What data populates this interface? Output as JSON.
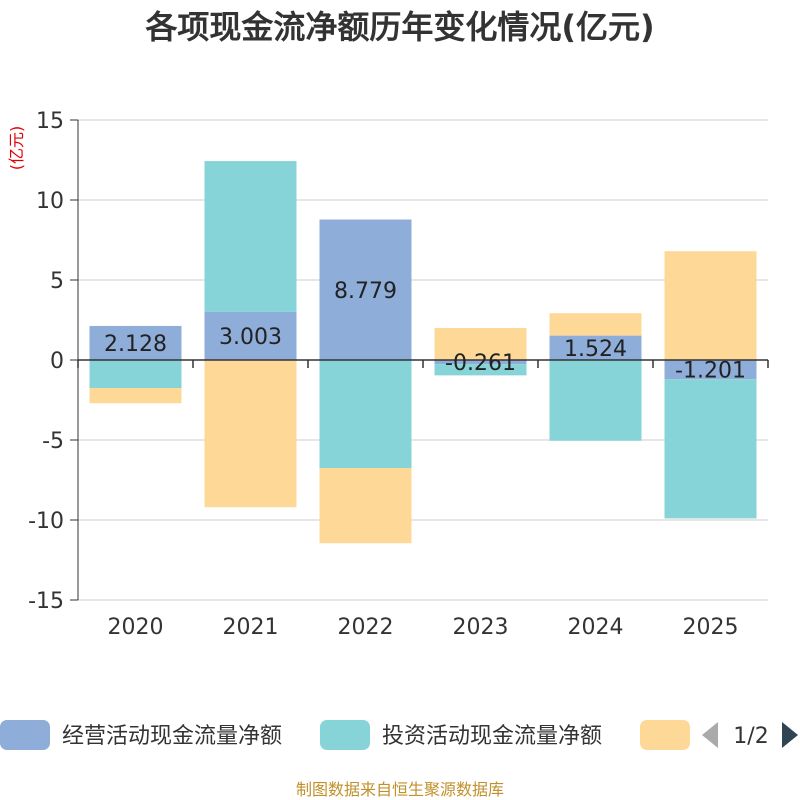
{
  "chart_data": {
    "type": "bar",
    "stacked": true,
    "title": "各项现金流净额历年变化情况(亿元)",
    "ylabel": "(亿元)",
    "ylim": [
      -15,
      15
    ],
    "yticks": [
      15,
      10,
      5,
      0,
      -5,
      -10,
      -15
    ],
    "categories": [
      "2020",
      "2021",
      "2022",
      "2023",
      "2024",
      "2025"
    ],
    "series": [
      {
        "name": "经营活动现金流量净额",
        "color": "#8eadd9",
        "values": [
          2.128,
          3.003,
          8.779,
          -0.261,
          1.524,
          -1.201
        ],
        "labels": [
          "2.128",
          "3.003",
          "8.779",
          "-0.261",
          "1.524",
          "-1.201"
        ]
      },
      {
        "name": "投资活动现金流量净额",
        "color": "#86d4d8",
        "values": [
          -1.75,
          9.43,
          -6.75,
          -0.7,
          -5.05,
          -8.7
        ]
      },
      {
        "name": "",
        "color": "#fed897",
        "values": [
          -0.95,
          -9.2,
          -4.7,
          2.0,
          1.4,
          6.8
        ]
      }
    ],
    "legend": {
      "page": "1/2"
    },
    "source": "制图数据来自恒生聚源数据库"
  }
}
